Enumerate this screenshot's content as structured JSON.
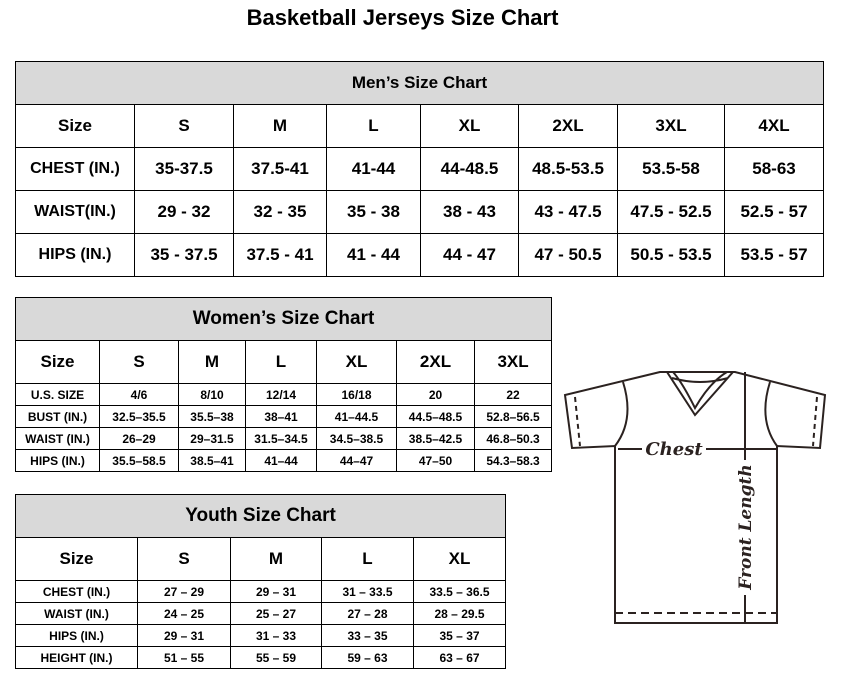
{
  "title": "Basketball Jerseys Size Chart",
  "men": {
    "title": "Men’s Size Chart",
    "headers": [
      "Size",
      "S",
      "M",
      "L",
      "XL",
      "2XL",
      "3XL",
      "4XL"
    ],
    "rows": [
      [
        "CHEST (IN.)",
        "35-37.5",
        "37.5-41",
        "41-44",
        "44-48.5",
        "48.5-53.5",
        "53.5-58",
        "58-63"
      ],
      [
        "WAIST(IN.)",
        "29 - 32",
        "32 - 35",
        "35 - 38",
        "38 - 43",
        "43 - 47.5",
        "47.5 - 52.5",
        "52.5 - 57"
      ],
      [
        "HIPS (IN.)",
        "35 - 37.5",
        "37.5 - 41",
        "41 - 44",
        "44 - 47",
        "47 - 50.5",
        "50.5 - 53.5",
        "53.5 - 57"
      ]
    ]
  },
  "women": {
    "title": "Women’s Size Chart",
    "headers": [
      "Size",
      "S",
      "M",
      "L",
      "XL",
      "2XL",
      "3XL"
    ],
    "rows": [
      [
        "U.S. SIZE",
        "4/6",
        "8/10",
        "12/14",
        "16/18",
        "20",
        "22"
      ],
      [
        "BUST (IN.)",
        "32.5–35.5",
        "35.5–38",
        "38–41",
        "41–44.5",
        "44.5–48.5",
        "52.8–56.5"
      ],
      [
        "WAIST (IN.)",
        "26–29",
        "29–31.5",
        "31.5–34.5",
        "34.5–38.5",
        "38.5–42.5",
        "46.8–50.3"
      ],
      [
        "HIPS (IN.)",
        "35.5–58.5",
        "38.5–41",
        "41–44",
        "44–47",
        "47–50",
        "54.3–58.3"
      ]
    ]
  },
  "youth": {
    "title": "Youth Size Chart",
    "headers": [
      "Size",
      "S",
      "M",
      "L",
      "XL"
    ],
    "rows": [
      [
        "CHEST (IN.)",
        "27 – 29",
        "29 – 31",
        "31 – 33.5",
        "33.5 – 36.5"
      ],
      [
        "WAIST (IN.)",
        "24 – 25",
        "25 – 27",
        "27 – 28",
        "28 – 29.5"
      ],
      [
        "HIPS (IN.)",
        "29 – 31",
        "31 – 33",
        "33 – 35",
        "35 – 37"
      ],
      [
        "HEIGHT (IN.)",
        "51 – 55",
        "55 – 59",
        "59 – 63",
        "63 – 67"
      ]
    ]
  },
  "diagram": {
    "chest_label": "Chest",
    "length_label": "Front Length",
    "line_color": "#2b2220"
  }
}
